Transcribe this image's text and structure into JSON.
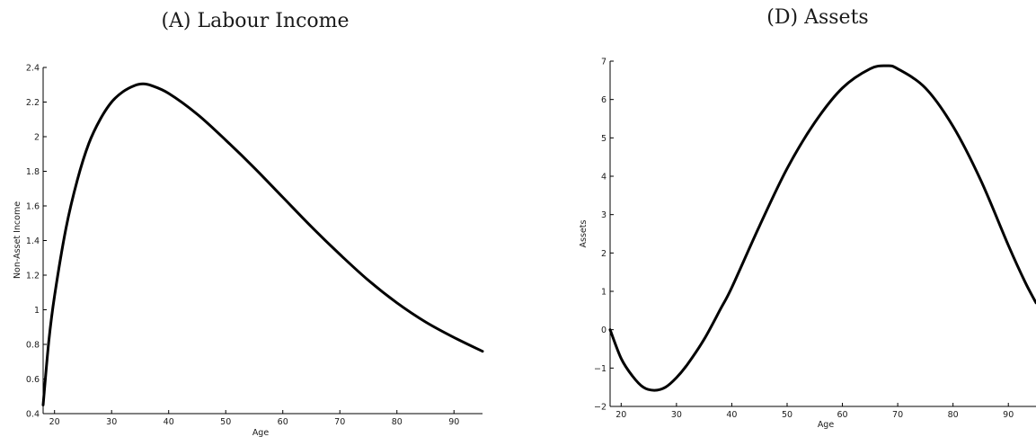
{
  "chart_data": [
    {
      "type": "line",
      "title": "(A) Labour Income",
      "xlabel": "Age",
      "ylabel": "Non-Asset Income",
      "xlim": [
        18,
        95
      ],
      "ylim": [
        0.4,
        2.4
      ],
      "xticks": [
        20,
        30,
        40,
        50,
        60,
        70,
        80,
        90
      ],
      "yticks": [
        0.4,
        0.6,
        0.8,
        1,
        1.2,
        1.4,
        1.6,
        1.8,
        2,
        2.2,
        2.4
      ],
      "ytick_labels": [
        "0.4",
        "0.6",
        "0.8",
        "1",
        "1.2",
        "1.4",
        "1.6",
        "1.8",
        "2",
        "2.2",
        "2.4"
      ],
      "grid": false,
      "series": [
        {
          "x": [
            18,
            19,
            20,
            22,
            24,
            26,
            28,
            30,
            32,
            34,
            35.5,
            37,
            40,
            45,
            50,
            55,
            60,
            65,
            70,
            75,
            80,
            85,
            90,
            95
          ],
          "values": [
            0.45,
            0.82,
            1.08,
            1.47,
            1.75,
            1.96,
            2.1,
            2.2,
            2.26,
            2.295,
            2.305,
            2.295,
            2.25,
            2.13,
            1.98,
            1.82,
            1.65,
            1.48,
            1.32,
            1.17,
            1.04,
            0.93,
            0.84,
            0.76
          ]
        }
      ]
    },
    {
      "type": "line",
      "title": "(D) Assets",
      "xlabel": "Age",
      "ylabel": "Assets",
      "xlim": [
        18,
        95
      ],
      "ylim": [
        -2,
        7
      ],
      "xticks": [
        20,
        30,
        40,
        50,
        60,
        70,
        80,
        90
      ],
      "yticks": [
        -2,
        -1,
        0,
        1,
        2,
        3,
        4,
        5,
        6,
        7
      ],
      "ytick_labels": [
        "−2",
        "−1",
        "0",
        "1",
        "2",
        "3",
        "4",
        "5",
        "6",
        "7"
      ],
      "grid": false,
      "series": [
        {
          "x": [
            18,
            20,
            22,
            24,
            26,
            28,
            30,
            32,
            35,
            38,
            40,
            45,
            50,
            55,
            60,
            65,
            68,
            70,
            75,
            80,
            85,
            90,
            93,
            95
          ],
          "values": [
            0,
            -0.75,
            -1.2,
            -1.5,
            -1.58,
            -1.5,
            -1.25,
            -0.9,
            -0.25,
            0.55,
            1.1,
            2.7,
            4.2,
            5.4,
            6.3,
            6.8,
            6.88,
            6.8,
            6.3,
            5.3,
            3.9,
            2.2,
            1.25,
            0.7
          ]
        }
      ]
    }
  ]
}
